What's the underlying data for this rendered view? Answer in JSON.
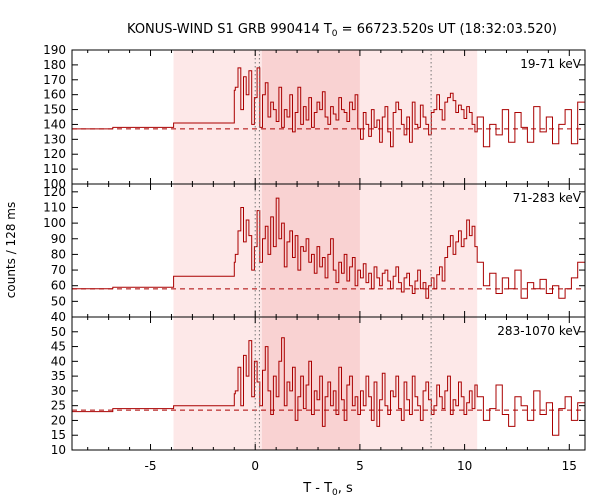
{
  "chart_data": {
    "type": "line",
    "title_main": "KONUS-WIND S1 GRB 990414 T",
    "title_sub": "0",
    "title_rest": " = 66723.520s UT (18:32:03.520)",
    "xlabel_main": "T - T",
    "xlabel_sub": "0",
    "xlabel_rest": ", s",
    "ylabel": "counts / 128 ms",
    "xlim": [
      -8.75,
      15.75
    ],
    "x_ticks": [
      -5,
      0,
      5,
      10,
      15
    ],
    "shaded_intervals": [
      {
        "start": -3.9,
        "end": 10.6,
        "shade": "light"
      },
      {
        "start": 0.32,
        "end": 5.0,
        "shade": "dark"
      }
    ],
    "dotted_lines_x": [
      0.0,
      0.2,
      8.4
    ],
    "colors": {
      "line": "#aa0000",
      "shade_light": "#fde8e8",
      "shade_dark": "#f9d2d2",
      "dotted": "#777777"
    },
    "panels": [
      {
        "label": "19-71 keV",
        "ylim": [
          100,
          190
        ],
        "y_ticks": [
          100,
          110,
          120,
          130,
          140,
          150,
          160,
          170,
          180,
          190
        ],
        "background": 137,
        "pre": [
          [
            -8.75,
            137
          ],
          [
            -6.8,
            138
          ],
          [
            -3.9,
            141
          ],
          [
            -1.0,
            163
          ]
        ],
        "fine_x": [
          -0.95,
          -0.82,
          -0.69,
          -0.56,
          -0.43,
          -0.3,
          -0.17,
          -0.04,
          0.09,
          0.22,
          0.35,
          0.48,
          0.61,
          0.74,
          0.87,
          1.0,
          1.13,
          1.26,
          1.39,
          1.52,
          1.65,
          1.78,
          1.91,
          2.04,
          2.17,
          2.3,
          2.43,
          2.56,
          2.69,
          2.82,
          2.95,
          3.08,
          3.21,
          3.34,
          3.47,
          3.6,
          3.73,
          3.86,
          3.99,
          4.12,
          4.25,
          4.38,
          4.51,
          4.64,
          4.77,
          4.9,
          5.03,
          5.16,
          5.29,
          5.42,
          5.55,
          5.68,
          5.81,
          5.94,
          6.07,
          6.2,
          6.33,
          6.46,
          6.59,
          6.72,
          6.85,
          6.98,
          7.11,
          7.24,
          7.37,
          7.5,
          7.63,
          7.76,
          7.89,
          8.02,
          8.15,
          8.28,
          8.41,
          8.54,
          8.67,
          8.8,
          8.93,
          9.06,
          9.19,
          9.32,
          9.45,
          9.58,
          9.71,
          9.84,
          9.97,
          10.1,
          10.23,
          10.36,
          10.49
        ],
        "fine_y": [
          165,
          178,
          150,
          172,
          160,
          176,
          140,
          158,
          178,
          138,
          160,
          168,
          145,
          155,
          150,
          142,
          165,
          138,
          150,
          145,
          160,
          135,
          148,
          165,
          140,
          152,
          143,
          158,
          138,
          148,
          155,
          150,
          162,
          145,
          140,
          152,
          147,
          143,
          158,
          150,
          148,
          142,
          155,
          150,
          160,
          137,
          130,
          148,
          140,
          132,
          150,
          138,
          143,
          128,
          145,
          152,
          135,
          125,
          148,
          155,
          150,
          140,
          133,
          145,
          128,
          155,
          140,
          138,
          153,
          145,
          140,
          133,
          148,
          150,
          160,
          150,
          143,
          155,
          158,
          161,
          156,
          148,
          153,
          150,
          144,
          152,
          148,
          140,
          135
        ],
        "tail_x": [
          10.6,
          10.9,
          11.2,
          11.5,
          11.8,
          12.1,
          12.4,
          12.7,
          13.0,
          13.3,
          13.6,
          13.9,
          14.2,
          14.5,
          14.8,
          15.1,
          15.4
        ],
        "tail_y": [
          145,
          125,
          140,
          133,
          150,
          128,
          148,
          138,
          128,
          152,
          135,
          145,
          127,
          140,
          150,
          127,
          155
        ]
      },
      {
        "label": "71-283 keV",
        "ylim": [
          40,
          125
        ],
        "y_ticks": [
          40,
          50,
          60,
          70,
          80,
          90,
          100,
          110,
          120
        ],
        "background": 58,
        "pre": [
          [
            -8.75,
            58
          ],
          [
            -6.8,
            59
          ],
          [
            -3.9,
            66
          ],
          [
            -1.0,
            75
          ]
        ],
        "fine_x": [
          -0.95,
          -0.82,
          -0.69,
          -0.56,
          -0.43,
          -0.3,
          -0.17,
          -0.04,
          0.09,
          0.22,
          0.35,
          0.48,
          0.61,
          0.74,
          0.87,
          1.0,
          1.13,
          1.26,
          1.39,
          1.52,
          1.65,
          1.78,
          1.91,
          2.04,
          2.17,
          2.3,
          2.43,
          2.56,
          2.69,
          2.82,
          2.95,
          3.08,
          3.21,
          3.34,
          3.47,
          3.6,
          3.73,
          3.86,
          3.99,
          4.12,
          4.25,
          4.38,
          4.51,
          4.64,
          4.77,
          4.9,
          5.03,
          5.16,
          5.29,
          5.42,
          5.55,
          5.68,
          5.81,
          5.94,
          6.07,
          6.2,
          6.33,
          6.46,
          6.59,
          6.72,
          6.85,
          6.98,
          7.11,
          7.24,
          7.37,
          7.5,
          7.63,
          7.76,
          7.89,
          8.02,
          8.15,
          8.28,
          8.41,
          8.54,
          8.67,
          8.8,
          8.93,
          9.06,
          9.19,
          9.32,
          9.45,
          9.58,
          9.71,
          9.84,
          9.97,
          10.1,
          10.23,
          10.36,
          10.49
        ],
        "fine_y": [
          80,
          95,
          110,
          88,
          102,
          92,
          70,
          85,
          108,
          75,
          90,
          98,
          80,
          104,
          85,
          116,
          90,
          100,
          72,
          88,
          95,
          78,
          92,
          70,
          85,
          82,
          90,
          75,
          80,
          68,
          85,
          72,
          78,
          65,
          80,
          90,
          70,
          62,
          75,
          68,
          80,
          63,
          72,
          78,
          60,
          70,
          65,
          74,
          62,
          68,
          58,
          72,
          65,
          60,
          68,
          70,
          63,
          58,
          66,
          72,
          62,
          56,
          65,
          68,
          60,
          55,
          63,
          70,
          58,
          62,
          52,
          60,
          65,
          58,
          67,
          72,
          63,
          78,
          85,
          92,
          80,
          88,
          95,
          85,
          90,
          102,
          92,
          98,
          85
        ],
        "tail_x": [
          10.6,
          10.9,
          11.2,
          11.5,
          11.8,
          12.1,
          12.4,
          12.7,
          13.0,
          13.3,
          13.6,
          13.9,
          14.2,
          14.5,
          14.8,
          15.1,
          15.4
        ],
        "tail_y": [
          75,
          60,
          68,
          55,
          65,
          58,
          70,
          52,
          62,
          58,
          64,
          55,
          60,
          52,
          58,
          65,
          75
        ]
      },
      {
        "label": "283-1070 keV",
        "ylim": [
          10,
          55
        ],
        "y_ticks": [
          10,
          15,
          20,
          25,
          30,
          35,
          40,
          45,
          50
        ],
        "background": 23.5,
        "pre": [
          [
            -8.75,
            23
          ],
          [
            -6.8,
            24
          ],
          [
            -3.9,
            25
          ],
          [
            -1.0,
            29
          ]
        ],
        "fine_x": [
          -0.95,
          -0.82,
          -0.69,
          -0.56,
          -0.43,
          -0.3,
          -0.17,
          -0.04,
          0.09,
          0.22,
          0.35,
          0.48,
          0.61,
          0.74,
          0.87,
          1.0,
          1.13,
          1.26,
          1.39,
          1.52,
          1.65,
          1.78,
          1.91,
          2.04,
          2.17,
          2.3,
          2.43,
          2.56,
          2.69,
          2.82,
          2.95,
          3.08,
          3.21,
          3.34,
          3.47,
          3.6,
          3.73,
          3.86,
          3.99,
          4.12,
          4.25,
          4.38,
          4.51,
          4.64,
          4.77,
          4.9,
          5.03,
          5.16,
          5.29,
          5.42,
          5.55,
          5.68,
          5.81,
          5.94,
          6.07,
          6.2,
          6.33,
          6.46,
          6.59,
          6.72,
          6.85,
          6.98,
          7.11,
          7.24,
          7.37,
          7.5,
          7.63,
          7.76,
          7.89,
          8.02,
          8.15,
          8.28,
          8.41,
          8.54,
          8.67,
          8.8,
          8.93,
          9.06,
          9.19,
          9.32,
          9.45,
          9.58,
          9.71,
          9.84,
          9.97,
          10.1,
          10.23,
          10.36,
          10.49
        ],
        "fine_y": [
          30,
          38,
          25,
          42,
          35,
          47,
          28,
          40,
          33,
          25,
          37,
          45,
          30,
          22,
          35,
          28,
          40,
          48,
          25,
          33,
          30,
          38,
          20,
          28,
          35,
          24,
          32,
          40,
          22,
          30,
          27,
          35,
          18,
          28,
          33,
          25,
          30,
          22,
          38,
          27,
          20,
          32,
          35,
          25,
          28,
          22,
          30,
          25,
          35,
          28,
          20,
          33,
          18,
          27,
          36,
          25,
          22,
          30,
          28,
          35,
          24,
          20,
          33,
          27,
          22,
          35,
          28,
          25,
          20,
          30,
          33,
          27,
          22,
          25,
          32,
          28,
          24,
          30,
          35,
          22,
          27,
          25,
          33,
          28,
          22,
          26,
          30,
          24,
          32
        ],
        "tail_x": [
          10.6,
          10.9,
          11.2,
          11.5,
          11.8,
          12.1,
          12.4,
          12.7,
          13.0,
          13.3,
          13.6,
          13.9,
          14.2,
          14.5,
          14.8,
          15.1,
          15.4
        ],
        "tail_y": [
          28,
          20,
          24,
          32,
          22,
          18,
          28,
          25,
          20,
          30,
          22,
          26,
          15,
          24,
          28,
          20,
          26
        ]
      }
    ]
  }
}
